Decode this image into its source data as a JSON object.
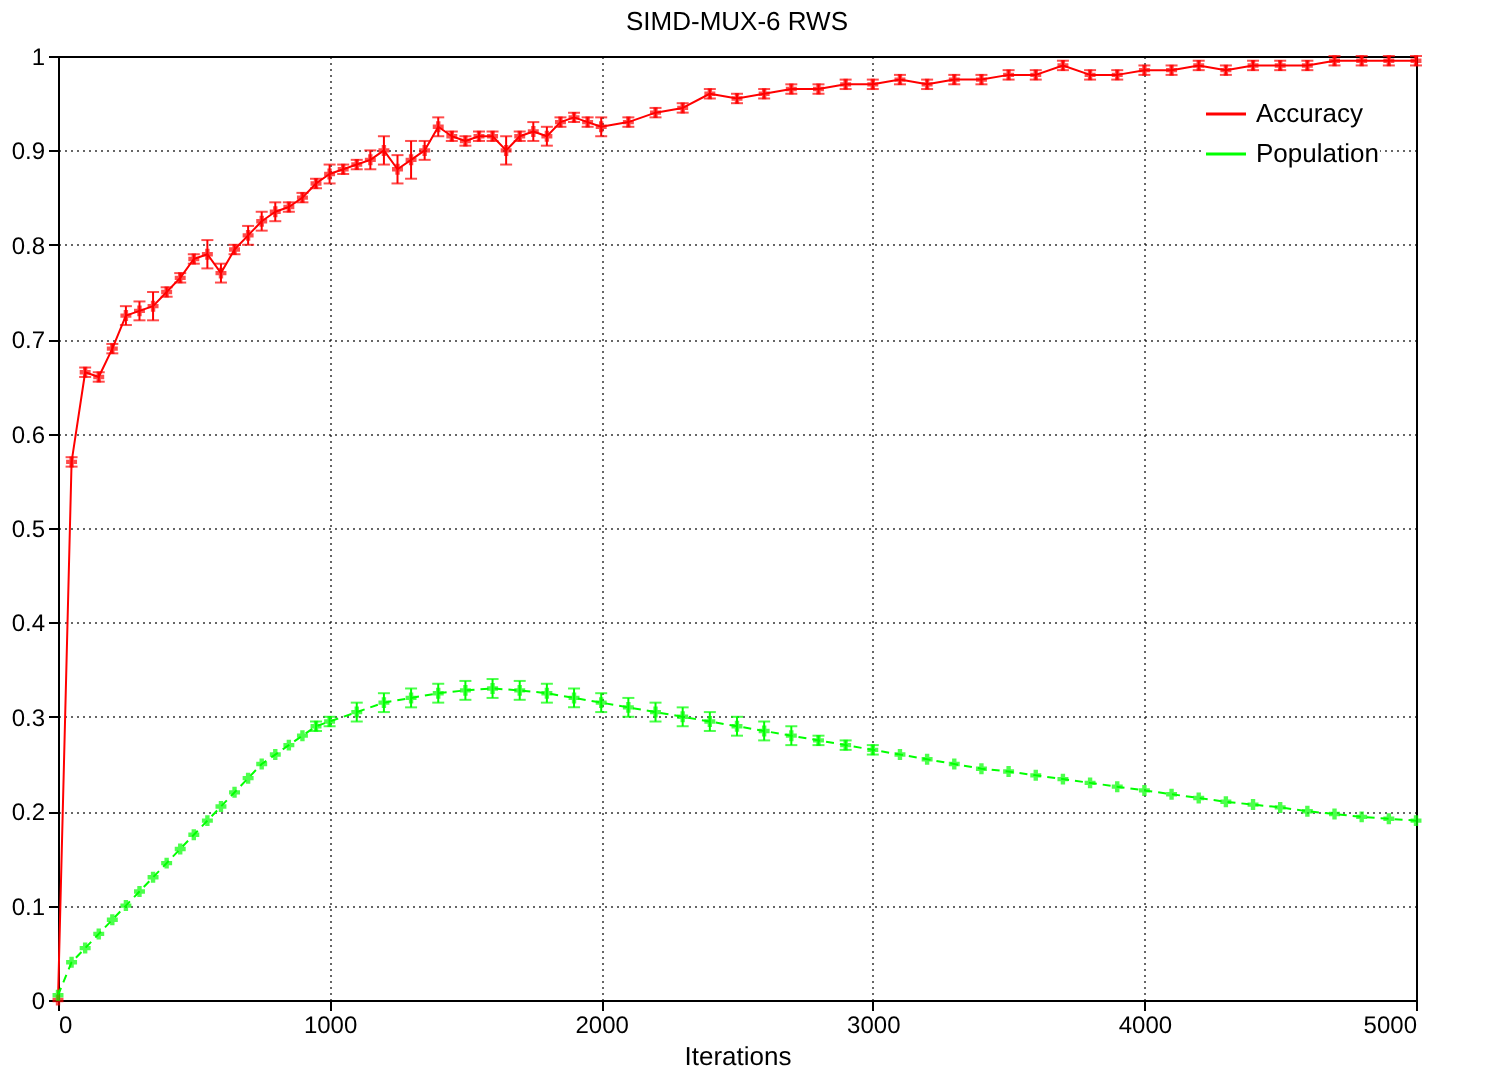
{
  "chart_data": {
    "type": "line",
    "title": "SIMD-MUX-6 RWS",
    "xlabel": "Iterations",
    "xlim": [
      0,
      5000
    ],
    "xticks": [
      0,
      1000,
      2000,
      3000,
      4000,
      5000
    ],
    "ylim": [
      0,
      1
    ],
    "yticks": [
      0,
      0.1,
      0.2,
      0.3,
      0.4,
      0.5,
      0.6,
      0.7,
      0.8,
      0.9,
      1
    ],
    "grid": true,
    "legend": "top right",
    "marker": "cross",
    "series": [
      {
        "name": "Accuracy",
        "color": "#ff0000",
        "line_style": "solid",
        "x": [
          0,
          50,
          100,
          150,
          200,
          250,
          300,
          350,
          400,
          450,
          500,
          550,
          600,
          650,
          700,
          750,
          800,
          850,
          900,
          950,
          1000,
          1050,
          1100,
          1150,
          1200,
          1250,
          1300,
          1350,
          1400,
          1450,
          1500,
          1550,
          1600,
          1650,
          1700,
          1750,
          1800,
          1850,
          1900,
          1950,
          2000,
          2100,
          2200,
          2300,
          2400,
          2500,
          2600,
          2700,
          2800,
          2900,
          3000,
          3100,
          3200,
          3300,
          3400,
          3500,
          3600,
          3700,
          3800,
          3900,
          4000,
          4100,
          4200,
          4300,
          4400,
          4500,
          4600,
          4700,
          4800,
          4900,
          5000
        ],
        "values": [
          0.0,
          0.57,
          0.665,
          0.66,
          0.69,
          0.725,
          0.73,
          0.735,
          0.75,
          0.765,
          0.785,
          0.79,
          0.77,
          0.795,
          0.81,
          0.825,
          0.835,
          0.84,
          0.85,
          0.865,
          0.875,
          0.88,
          0.885,
          0.89,
          0.9,
          0.88,
          0.89,
          0.9,
          0.925,
          0.915,
          0.91,
          0.915,
          0.915,
          0.9,
          0.915,
          0.92,
          0.915,
          0.93,
          0.935,
          0.93,
          0.925,
          0.93,
          0.94,
          0.945,
          0.96,
          0.955,
          0.96,
          0.965,
          0.965,
          0.97,
          0.97,
          0.975,
          0.97,
          0.975,
          0.975,
          0.98,
          0.98,
          0.99,
          0.98,
          0.98,
          0.985,
          0.985,
          0.99,
          0.985,
          0.99,
          0.99,
          0.99,
          0.995,
          0.995,
          0.995,
          0.995
        ],
        "errors": [
          null,
          0.005,
          0.005,
          0.005,
          0.005,
          0.01,
          0.01,
          0.015,
          0.005,
          0.005,
          0.005,
          0.015,
          0.01,
          0.005,
          0.01,
          0.01,
          0.01,
          0.005,
          0.005,
          0.005,
          0.01,
          0.005,
          0.005,
          0.01,
          0.015,
          0.015,
          0.02,
          0.01,
          0.01,
          0.005,
          0.005,
          0.005,
          0.005,
          0.015,
          0.005,
          0.01,
          0.01,
          0.005,
          0.005,
          0.005,
          0.01,
          0.005,
          0.005,
          0.005,
          0.005,
          0.005,
          0.005,
          0.005,
          0.005,
          0.005,
          0.005,
          0.005,
          0.005,
          0.005,
          0.005,
          0.005,
          0.005,
          0.005,
          0.005,
          0.005,
          0.005,
          0.005,
          0.005,
          0.005,
          0.005,
          0.005,
          0.005,
          0.005,
          0.005,
          0.005,
          0.005
        ]
      },
      {
        "name": "Population",
        "color": "#00ff00",
        "line_style": "dashed",
        "x": [
          0,
          50,
          100,
          150,
          200,
          250,
          300,
          350,
          400,
          450,
          500,
          550,
          600,
          650,
          700,
          750,
          800,
          850,
          900,
          950,
          1000,
          1100,
          1200,
          1300,
          1400,
          1500,
          1600,
          1700,
          1800,
          1900,
          2000,
          2100,
          2200,
          2300,
          2400,
          2500,
          2600,
          2700,
          2800,
          2900,
          3000,
          3100,
          3200,
          3300,
          3400,
          3500,
          3600,
          3700,
          3800,
          3900,
          4000,
          4100,
          4200,
          4300,
          4400,
          4500,
          4600,
          4700,
          4800,
          4900,
          5000
        ],
        "values": [
          0.005,
          0.04,
          0.055,
          0.07,
          0.085,
          0.1,
          0.115,
          0.13,
          0.145,
          0.16,
          0.175,
          0.19,
          0.205,
          0.22,
          0.235,
          0.25,
          0.26,
          0.27,
          0.28,
          0.29,
          0.295,
          0.305,
          0.315,
          0.32,
          0.325,
          0.328,
          0.33,
          0.328,
          0.325,
          0.32,
          0.315,
          0.31,
          0.305,
          0.3,
          0.295,
          0.29,
          0.285,
          0.28,
          0.275,
          0.27,
          0.265,
          0.26,
          0.255,
          0.25,
          0.245,
          0.242,
          0.238,
          0.234,
          0.23,
          0.226,
          0.222,
          0.218,
          0.214,
          0.21,
          0.207,
          0.204,
          0.2,
          0.197,
          0.194,
          0.192,
          0.19
        ],
        "errors": [
          null,
          null,
          null,
          null,
          null,
          null,
          null,
          null,
          null,
          null,
          null,
          null,
          null,
          null,
          null,
          null,
          null,
          null,
          null,
          0.005,
          0.005,
          0.01,
          0.01,
          0.01,
          0.01,
          0.01,
          0.01,
          0.01,
          0.01,
          0.01,
          0.01,
          0.01,
          0.01,
          0.01,
          0.01,
          0.01,
          0.01,
          0.01,
          0.005,
          0.005,
          0.005,
          null,
          null,
          null,
          null,
          null,
          null,
          null,
          null,
          null,
          null,
          null,
          null,
          null,
          null,
          null,
          null,
          null,
          null,
          null,
          null
        ]
      }
    ]
  }
}
